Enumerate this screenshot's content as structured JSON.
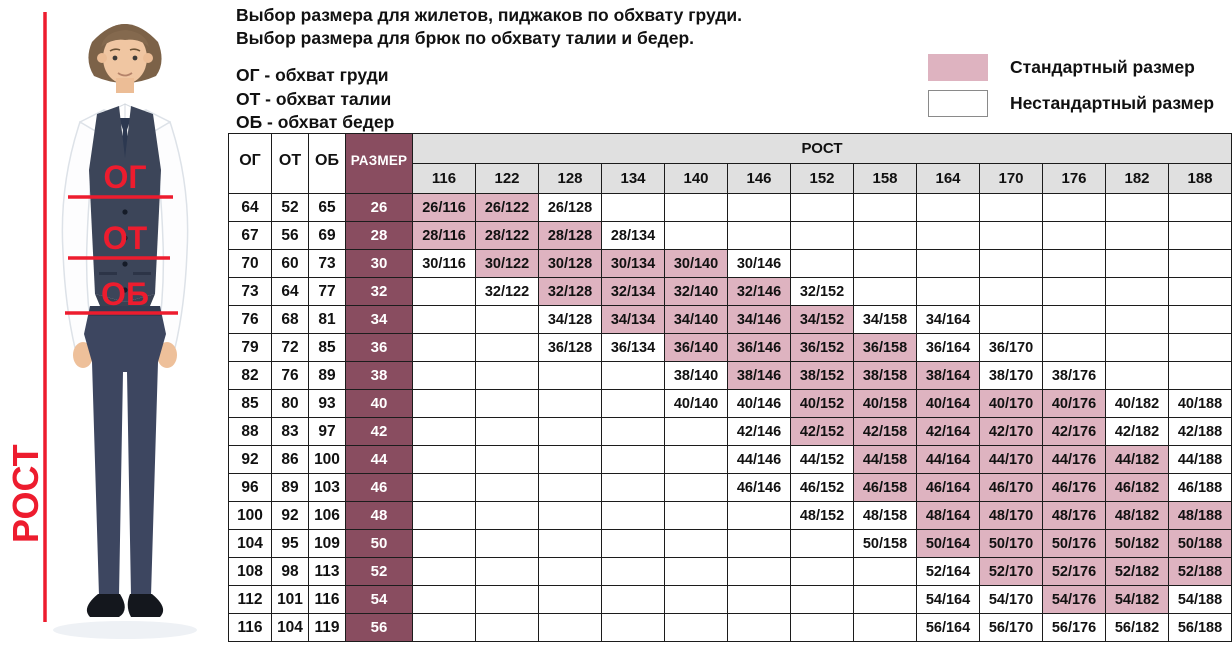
{
  "intro": {
    "line1": "Выбор размера для жилетов, пиджаков по обхвату груди.",
    "line2": "Выбор размера для брюк по обхвату талии и бедер.",
    "abbr": [
      "ОГ - обхват груди",
      "ОТ - обхват талии",
      "ОБ - обхват бедер"
    ]
  },
  "legend": {
    "standard_label": "Стандартный размер",
    "nonstandard_label": "Нестандартный размер",
    "standard_color": "#deb3c0",
    "nonstandard_color": "#ffffff"
  },
  "figure": {
    "chest_label": "ОГ",
    "waist_label": "ОТ",
    "hips_label": "ОБ",
    "height_label": "РОСТ",
    "line_color": "#ed1c2e"
  },
  "table": {
    "corner_headers": [
      "ОГ",
      "ОТ",
      "ОБ"
    ],
    "size_header": "РАЗМЕР",
    "rost_header": "РОСТ",
    "heights": [
      "116",
      "122",
      "128",
      "134",
      "140",
      "146",
      "152",
      "158",
      "164",
      "170",
      "176",
      "182",
      "188"
    ],
    "colors": {
      "size_col": "#894d60",
      "standard": "#deb3c0",
      "header_bg": "#e0e0e0"
    },
    "rows": [
      {
        "og": "64",
        "ot": "52",
        "ob": "65",
        "size": "26",
        "cells": [
          {
            "t": "26/116",
            "s": 1
          },
          {
            "t": "26/122",
            "s": 1
          },
          {
            "t": "26/128",
            "s": 0
          },
          null,
          null,
          null,
          null,
          null,
          null,
          null,
          null,
          null,
          null
        ]
      },
      {
        "og": "67",
        "ot": "56",
        "ob": "69",
        "size": "28",
        "cells": [
          {
            "t": "28/116",
            "s": 1
          },
          {
            "t": "28/122",
            "s": 1
          },
          {
            "t": "28/128",
            "s": 1
          },
          {
            "t": "28/134",
            "s": 0
          },
          null,
          null,
          null,
          null,
          null,
          null,
          null,
          null,
          null
        ]
      },
      {
        "og": "70",
        "ot": "60",
        "ob": "73",
        "size": "30",
        "cells": [
          {
            "t": "30/116",
            "s": 0
          },
          {
            "t": "30/122",
            "s": 1
          },
          {
            "t": "30/128",
            "s": 1
          },
          {
            "t": "30/134",
            "s": 1
          },
          {
            "t": "30/140",
            "s": 1
          },
          {
            "t": "30/146",
            "s": 0
          },
          null,
          null,
          null,
          null,
          null,
          null,
          null
        ]
      },
      {
        "og": "73",
        "ot": "64",
        "ob": "77",
        "size": "32",
        "cells": [
          null,
          {
            "t": "32/122",
            "s": 0
          },
          {
            "t": "32/128",
            "s": 1
          },
          {
            "t": "32/134",
            "s": 1
          },
          {
            "t": "32/140",
            "s": 1
          },
          {
            "t": "32/146",
            "s": 1
          },
          {
            "t": "32/152",
            "s": 0
          },
          null,
          null,
          null,
          null,
          null,
          null
        ]
      },
      {
        "og": "76",
        "ot": "68",
        "ob": "81",
        "size": "34",
        "cells": [
          null,
          null,
          {
            "t": "34/128",
            "s": 0
          },
          {
            "t": "34/134",
            "s": 1
          },
          {
            "t": "34/140",
            "s": 1
          },
          {
            "t": "34/146",
            "s": 1
          },
          {
            "t": "34/152",
            "s": 1
          },
          {
            "t": "34/158",
            "s": 0
          },
          {
            "t": "34/164",
            "s": 0
          },
          null,
          null,
          null,
          null
        ]
      },
      {
        "og": "79",
        "ot": "72",
        "ob": "85",
        "size": "36",
        "cells": [
          null,
          null,
          {
            "t": "36/128",
            "s": 0
          },
          {
            "t": "36/134",
            "s": 0
          },
          {
            "t": "36/140",
            "s": 1
          },
          {
            "t": "36/146",
            "s": 1
          },
          {
            "t": "36/152",
            "s": 1
          },
          {
            "t": "36/158",
            "s": 1
          },
          {
            "t": "36/164",
            "s": 0
          },
          {
            "t": "36/170",
            "s": 0
          },
          null,
          null,
          null
        ]
      },
      {
        "og": "82",
        "ot": "76",
        "ob": "89",
        "size": "38",
        "cells": [
          null,
          null,
          null,
          null,
          {
            "t": "38/140",
            "s": 0
          },
          {
            "t": "38/146",
            "s": 1
          },
          {
            "t": "38/152",
            "s": 1
          },
          {
            "t": "38/158",
            "s": 1
          },
          {
            "t": "38/164",
            "s": 1
          },
          {
            "t": "38/170",
            "s": 0
          },
          {
            "t": "38/176",
            "s": 0
          },
          null,
          null
        ]
      },
      {
        "og": "85",
        "ot": "80",
        "ob": "93",
        "size": "40",
        "cells": [
          null,
          null,
          null,
          null,
          {
            "t": "40/140",
            "s": 0
          },
          {
            "t": "40/146",
            "s": 0
          },
          {
            "t": "40/152",
            "s": 1
          },
          {
            "t": "40/158",
            "s": 1
          },
          {
            "t": "40/164",
            "s": 1
          },
          {
            "t": "40/170",
            "s": 1
          },
          {
            "t": "40/176",
            "s": 1
          },
          {
            "t": "40/182",
            "s": 0
          },
          {
            "t": "40/188",
            "s": 0
          }
        ]
      },
      {
        "og": "88",
        "ot": "83",
        "ob": "97",
        "size": "42",
        "cells": [
          null,
          null,
          null,
          null,
          null,
          {
            "t": "42/146",
            "s": 0
          },
          {
            "t": "42/152",
            "s": 1
          },
          {
            "t": "42/158",
            "s": 1
          },
          {
            "t": "42/164",
            "s": 1
          },
          {
            "t": "42/170",
            "s": 1
          },
          {
            "t": "42/176",
            "s": 1
          },
          {
            "t": "42/182",
            "s": 0
          },
          {
            "t": "42/188",
            "s": 0
          }
        ]
      },
      {
        "og": "92",
        "ot": "86",
        "ob": "100",
        "size": "44",
        "cells": [
          null,
          null,
          null,
          null,
          null,
          {
            "t": "44/146",
            "s": 0
          },
          {
            "t": "44/152",
            "s": 0
          },
          {
            "t": "44/158",
            "s": 1
          },
          {
            "t": "44/164",
            "s": 1
          },
          {
            "t": "44/170",
            "s": 1
          },
          {
            "t": "44/176",
            "s": 1
          },
          {
            "t": "44/182",
            "s": 1
          },
          {
            "t": "44/188",
            "s": 0
          }
        ]
      },
      {
        "og": "96",
        "ot": "89",
        "ob": "103",
        "size": "46",
        "cells": [
          null,
          null,
          null,
          null,
          null,
          {
            "t": "46/146",
            "s": 0
          },
          {
            "t": "46/152",
            "s": 0
          },
          {
            "t": "46/158",
            "s": 1
          },
          {
            "t": "46/164",
            "s": 1
          },
          {
            "t": "46/170",
            "s": 1
          },
          {
            "t": "46/176",
            "s": 1
          },
          {
            "t": "46/182",
            "s": 1
          },
          {
            "t": "46/188",
            "s": 0
          }
        ]
      },
      {
        "og": "100",
        "ot": "92",
        "ob": "106",
        "size": "48",
        "cells": [
          null,
          null,
          null,
          null,
          null,
          null,
          {
            "t": "48/152",
            "s": 0
          },
          {
            "t": "48/158",
            "s": 0
          },
          {
            "t": "48/164",
            "s": 1
          },
          {
            "t": "48/170",
            "s": 1
          },
          {
            "t": "48/176",
            "s": 1
          },
          {
            "t": "48/182",
            "s": 1
          },
          {
            "t": "48/188",
            "s": 1
          }
        ]
      },
      {
        "og": "104",
        "ot": "95",
        "ob": "109",
        "size": "50",
        "cells": [
          null,
          null,
          null,
          null,
          null,
          null,
          null,
          {
            "t": "50/158",
            "s": 0
          },
          {
            "t": "50/164",
            "s": 1
          },
          {
            "t": "50/170",
            "s": 1
          },
          {
            "t": "50/176",
            "s": 1
          },
          {
            "t": "50/182",
            "s": 1
          },
          {
            "t": "50/188",
            "s": 1
          }
        ]
      },
      {
        "og": "108",
        "ot": "98",
        "ob": "113",
        "size": "52",
        "cells": [
          null,
          null,
          null,
          null,
          null,
          null,
          null,
          null,
          {
            "t": "52/164",
            "s": 0
          },
          {
            "t": "52/170",
            "s": 1
          },
          {
            "t": "52/176",
            "s": 1
          },
          {
            "t": "52/182",
            "s": 1
          },
          {
            "t": "52/188",
            "s": 1
          }
        ]
      },
      {
        "og": "112",
        "ot": "101",
        "ob": "116",
        "size": "54",
        "cells": [
          null,
          null,
          null,
          null,
          null,
          null,
          null,
          null,
          {
            "t": "54/164",
            "s": 0
          },
          {
            "t": "54/170",
            "s": 0
          },
          {
            "t": "54/176",
            "s": 1
          },
          {
            "t": "54/182",
            "s": 1
          },
          {
            "t": "54/188",
            "s": 0
          }
        ]
      },
      {
        "og": "116",
        "ot": "104",
        "ob": "119",
        "size": "56",
        "cells": [
          null,
          null,
          null,
          null,
          null,
          null,
          null,
          null,
          {
            "t": "56/164",
            "s": 0
          },
          {
            "t": "56/170",
            "s": 0
          },
          {
            "t": "56/176",
            "s": 0
          },
          {
            "t": "56/182",
            "s": 0
          },
          {
            "t": "56/188",
            "s": 0
          }
        ]
      }
    ]
  }
}
